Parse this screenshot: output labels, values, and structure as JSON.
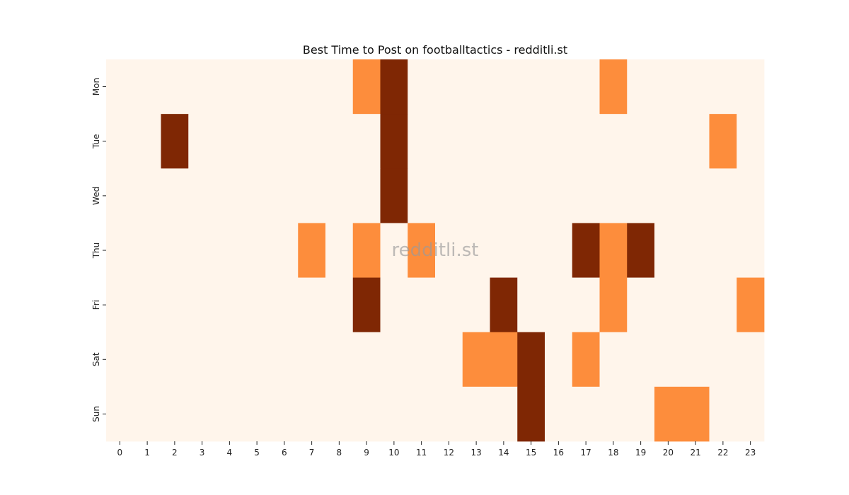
{
  "chart_data": {
    "type": "heatmap",
    "title": "Best Time to Post on footballtactics - redditli.st",
    "xlabel": "",
    "ylabel": "",
    "x_categories": [
      "0",
      "1",
      "2",
      "3",
      "4",
      "5",
      "6",
      "7",
      "8",
      "9",
      "10",
      "11",
      "12",
      "13",
      "14",
      "15",
      "16",
      "17",
      "18",
      "19",
      "20",
      "21",
      "22",
      "23"
    ],
    "y_categories": [
      "Mon",
      "Tue",
      "Wed",
      "Thu",
      "Fri",
      "Sat",
      "Sun"
    ],
    "values": [
      [
        0,
        0,
        0,
        0,
        0,
        0,
        0,
        0,
        0,
        1,
        2,
        0,
        0,
        0,
        0,
        0,
        0,
        0,
        1,
        0,
        0,
        0,
        0,
        0
      ],
      [
        0,
        0,
        2,
        0,
        0,
        0,
        0,
        0,
        0,
        0,
        2,
        0,
        0,
        0,
        0,
        0,
        0,
        0,
        0,
        0,
        0,
        0,
        1,
        0
      ],
      [
        0,
        0,
        0,
        0,
        0,
        0,
        0,
        0,
        0,
        0,
        2,
        0,
        0,
        0,
        0,
        0,
        0,
        0,
        0,
        0,
        0,
        0,
        0,
        0
      ],
      [
        0,
        0,
        0,
        0,
        0,
        0,
        0,
        1,
        0,
        1,
        0,
        1,
        0,
        0,
        0,
        0,
        0,
        2,
        1,
        2,
        0,
        0,
        0,
        0
      ],
      [
        0,
        0,
        0,
        0,
        0,
        0,
        0,
        0,
        0,
        2,
        0,
        0,
        0,
        0,
        2,
        0,
        0,
        0,
        1,
        0,
        0,
        0,
        0,
        1
      ],
      [
        0,
        0,
        0,
        0,
        0,
        0,
        0,
        0,
        0,
        0,
        0,
        0,
        0,
        1,
        1,
        2,
        0,
        1,
        0,
        0,
        0,
        0,
        0,
        0
      ],
      [
        0,
        0,
        0,
        0,
        0,
        0,
        0,
        0,
        0,
        0,
        0,
        0,
        0,
        0,
        0,
        2,
        0,
        0,
        0,
        0,
        1,
        1,
        0,
        0
      ]
    ],
    "colormap": [
      "#fff5eb",
      "#fd8d3c",
      "#7f2704"
    ],
    "grid": false,
    "legend": "none",
    "watermark": "redditli.st"
  }
}
